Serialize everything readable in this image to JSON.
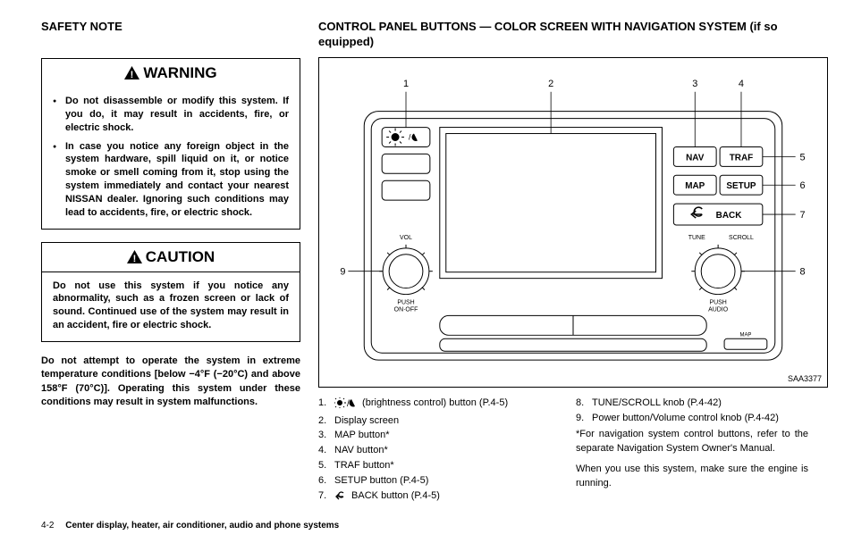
{
  "left": {
    "safety_heading": "SAFETY NOTE",
    "warning_title": "WARNING",
    "warning_items": [
      "Do not disassemble or modify this system. If you do, it may result in accidents, fire, or electric shock.",
      "In case you notice any foreign object in the system hardware, spill liquid on it, or notice smoke or smell coming from it, stop using the system immediately and contact your nearest NISSAN dealer. Ignoring such conditions may lead to accidents, fire, or electric shock."
    ],
    "caution_title": "CAUTION",
    "caution_body": "Do not use this system if you notice any abnormality, such as a frozen screen or lack of sound. Continued use of the system may result in an accident, fire or electric shock.",
    "temp_note": "Do not attempt to operate the system in extreme temperature conditions [below −4°F (−20°C) and above 158°F (70°C)]. Operating this system under these conditions may result in system malfunctions."
  },
  "right": {
    "heading": "CONTROL PANEL BUTTONS — COLOR SCREEN WITH NAVIGATION SYSTEM (if so equipped)",
    "diagram": {
      "id": "SAA3377",
      "buttons": {
        "nav": "NAV",
        "traf": "TRAF",
        "map": "MAP",
        "setup": "SETUP",
        "back": "BACK"
      },
      "labels": {
        "vol": "VOL",
        "push_onoff": "PUSH\nON·OFF",
        "tune": "TUNE",
        "scroll": "SCROLL",
        "push_audio": "PUSH\nAUDIO",
        "map_small": "MAP"
      },
      "callouts": [
        "1",
        "2",
        "3",
        "4",
        "5",
        "6",
        "7",
        "8",
        "9"
      ]
    },
    "legend_a": [
      {
        "n": "1.",
        "t": " (brightness control) button (P.4-5)",
        "icon": "bright"
      },
      {
        "n": "2.",
        "t": "Display screen"
      },
      {
        "n": "3.",
        "t": "MAP button*"
      },
      {
        "n": "4.",
        "t": "NAV button*"
      },
      {
        "n": "5.",
        "t": "TRAF button*"
      },
      {
        "n": "6.",
        "t": "SETUP button (P.4-5)"
      },
      {
        "n": "7.",
        "t": " BACK button (P.4-5)",
        "icon": "back"
      }
    ],
    "legend_b": [
      {
        "n": "8.",
        "t": "TUNE/SCROLL knob (P.4-42)"
      },
      {
        "n": "9.",
        "t": "Power button/Volume control knob (P.4-42)"
      }
    ],
    "footnote_a": "*For navigation system control buttons, refer to the separate Navigation System Owner's Manual.",
    "footnote_b": "When you use this system, make sure the engine is running."
  },
  "footer": {
    "page": "4-2",
    "section": "Center display, heater, air conditioner, audio and phone systems"
  }
}
